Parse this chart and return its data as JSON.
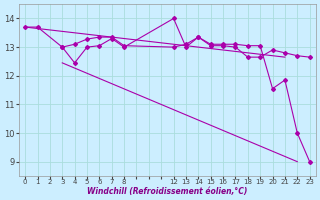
{
  "background_color": "#cceeff",
  "grid_color": "#aadddd",
  "line_color": "#aa00aa",
  "xlabel": "Windchill (Refroidissement éolien,°C)",
  "xlabel_color": "#880088",
  "ylim": [
    8.5,
    14.5
  ],
  "yticks": [
    9,
    10,
    11,
    12,
    13,
    14
  ],
  "xlim": [
    -0.5,
    23.5
  ],
  "xticks_labeled": [
    0,
    1,
    2,
    3,
    4,
    5,
    6,
    7,
    8,
    12,
    13,
    14,
    15,
    16,
    17,
    18,
    19,
    20,
    21,
    22,
    23
  ],
  "xticks_all": [
    0,
    1,
    2,
    3,
    4,
    5,
    6,
    7,
    8,
    9,
    10,
    11,
    12,
    13,
    14,
    15,
    16,
    17,
    18,
    19,
    20,
    21,
    22,
    23
  ],
  "line1_x": [
    0,
    1,
    3,
    4,
    5,
    6,
    7,
    8,
    12,
    13,
    14,
    15,
    16,
    17,
    18,
    19,
    20,
    21,
    22,
    23
  ],
  "line1_y": [
    13.7,
    13.7,
    13.0,
    13.1,
    13.28,
    13.35,
    13.35,
    13.05,
    13.0,
    13.1,
    13.35,
    13.05,
    13.05,
    13.0,
    12.65,
    12.65,
    12.9,
    12.8,
    12.7,
    12.65
  ],
  "line2_x": [
    3,
    4,
    5,
    6,
    7,
    8,
    12,
    13,
    14,
    15,
    16,
    17,
    18,
    19,
    20,
    21,
    22,
    23
  ],
  "line2_y": [
    13.0,
    12.45,
    13.0,
    13.05,
    13.3,
    13.0,
    14.0,
    13.0,
    13.35,
    13.1,
    13.1,
    13.1,
    13.05,
    13.05,
    11.55,
    11.85,
    10.0,
    9.0
  ],
  "line3_x": [
    3,
    22
  ],
  "line3_y": [
    12.45,
    9.0
  ],
  "line4_x": [
    0,
    21
  ],
  "line4_y": [
    13.7,
    12.65
  ]
}
